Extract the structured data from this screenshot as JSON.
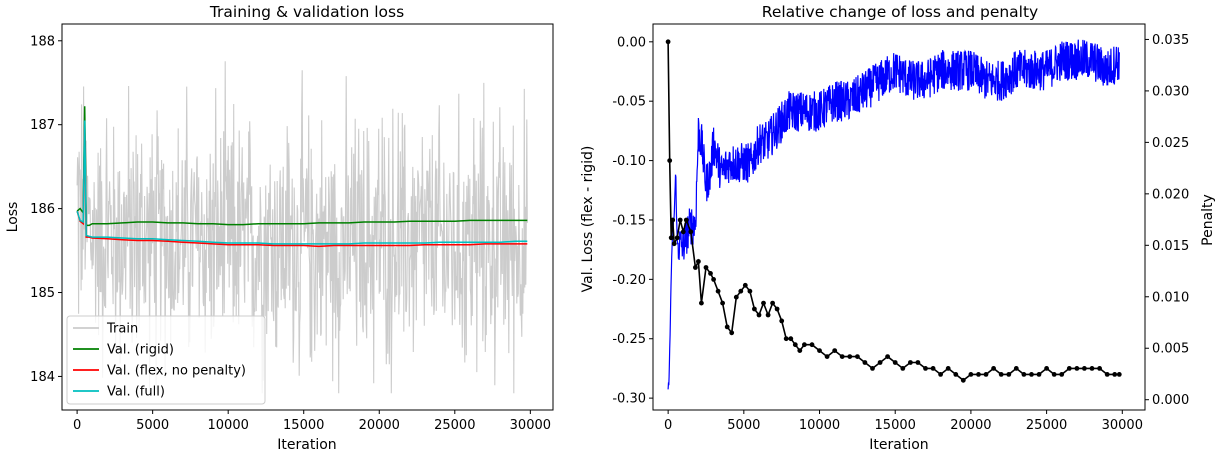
{
  "chart_data": [
    {
      "type": "line",
      "title": "Training & validation loss",
      "xlabel": "Iteration",
      "ylabel": "Loss",
      "xlim": [
        -1000,
        31500
      ],
      "ylim": [
        183.6,
        188.2
      ],
      "xticks": [
        0,
        5000,
        10000,
        15000,
        20000,
        25000,
        30000
      ],
      "yticks": [
        184,
        185,
        186,
        187,
        188
      ],
      "legend_position": "lower-left",
      "grid": false,
      "series": [
        {
          "name": "Train",
          "color": "#cccccc",
          "noise_band": true,
          "x": [
            0,
            500,
            1000,
            2000,
            5000,
            10000,
            15000,
            20000,
            25000,
            27000,
            29800
          ],
          "y": [
            186.0,
            185.9,
            185.7,
            185.7,
            185.65,
            185.6,
            185.6,
            185.6,
            185.6,
            185.6,
            185.6
          ],
          "approx_range": [
            183.8,
            187.9
          ]
        },
        {
          "name": "Val. (rigid)",
          "color": "#008000",
          "x": [
            0,
            200,
            400,
            500,
            550,
            600,
            800,
            1000,
            2000,
            3000,
            4000,
            5000,
            6000,
            7000,
            8000,
            9000,
            10000,
            11000,
            12000,
            13000,
            14000,
            15000,
            16000,
            17000,
            18000,
            19000,
            20000,
            21000,
            22000,
            23000,
            24000,
            25000,
            26000,
            27000,
            28000,
            29000,
            29800
          ],
          "y": [
            185.97,
            186.0,
            185.95,
            187.22,
            186.6,
            185.8,
            185.8,
            185.82,
            185.82,
            185.83,
            185.84,
            185.84,
            185.83,
            185.83,
            185.82,
            185.82,
            185.81,
            185.81,
            185.82,
            185.82,
            185.82,
            185.82,
            185.83,
            185.83,
            185.83,
            185.84,
            185.84,
            185.84,
            185.85,
            185.85,
            185.85,
            185.85,
            185.86,
            185.86,
            185.86,
            185.86,
            185.86
          ]
        },
        {
          "name": "Val. (flex, no penalty)",
          "color": "#ff0000",
          "x": [
            0,
            200,
            400,
            500,
            550,
            600,
            800,
            1000,
            2000,
            3000,
            4000,
            5000,
            6000,
            7000,
            8000,
            9000,
            10000,
            11000,
            12000,
            13000,
            14000,
            15000,
            16000,
            17000,
            18000,
            19000,
            20000,
            21000,
            22000,
            23000,
            24000,
            25000,
            26000,
            27000,
            28000,
            29000,
            29800
          ],
          "y": [
            185.97,
            185.85,
            185.82,
            187.0,
            186.4,
            185.66,
            185.66,
            185.65,
            185.64,
            185.63,
            185.62,
            185.62,
            185.61,
            185.6,
            185.59,
            185.58,
            185.57,
            185.57,
            185.57,
            185.56,
            185.56,
            185.56,
            185.55,
            185.56,
            185.56,
            185.56,
            185.56,
            185.56,
            185.56,
            185.57,
            185.57,
            185.57,
            185.57,
            185.58,
            185.58,
            185.58,
            185.58
          ]
        },
        {
          "name": "Val. (full)",
          "color": "#00bfbf",
          "x": [
            0,
            200,
            400,
            500,
            550,
            600,
            800,
            1000,
            2000,
            3000,
            4000,
            5000,
            6000,
            7000,
            8000,
            9000,
            10000,
            11000,
            12000,
            13000,
            14000,
            15000,
            16000,
            17000,
            18000,
            19000,
            20000,
            21000,
            22000,
            23000,
            24000,
            25000,
            26000,
            27000,
            28000,
            29000,
            29800
          ],
          "y": [
            185.97,
            185.86,
            185.84,
            187.05,
            186.45,
            185.68,
            185.67,
            185.66,
            185.66,
            185.65,
            185.64,
            185.64,
            185.63,
            185.62,
            185.61,
            185.6,
            185.59,
            185.59,
            185.59,
            185.58,
            185.58,
            185.58,
            185.58,
            185.58,
            185.58,
            185.59,
            185.59,
            185.59,
            185.59,
            185.59,
            185.6,
            185.6,
            185.6,
            185.6,
            185.6,
            185.61,
            185.61
          ]
        }
      ]
    },
    {
      "type": "line",
      "title": "Relative change of loss and penalty",
      "xlabel": "Iteration",
      "ylabel": "Val. Loss (flex - rigid)",
      "ylabel_right": "Penalty",
      "ylabel_right_color": "#0000ff",
      "xlim": [
        -1000,
        31500
      ],
      "ylim": [
        -0.31,
        0.015
      ],
      "ylim_right": [
        -0.001,
        0.0365
      ],
      "xticks": [
        0,
        5000,
        10000,
        15000,
        20000,
        25000,
        30000
      ],
      "yticks": [
        0.0,
        -0.05,
        -0.1,
        -0.15,
        -0.2,
        -0.25,
        -0.3
      ],
      "yticks_right": [
        0.0,
        0.005,
        0.01,
        0.015,
        0.02,
        0.025,
        0.03,
        0.035
      ],
      "grid": false,
      "series": [
        {
          "name": "Penalty",
          "axis": "right",
          "color": "#0000ff",
          "noise_band": true,
          "x": [
            0,
            100,
            200,
            300,
            400,
            500,
            600,
            700,
            800,
            1000,
            1200,
            1500,
            1800,
            2000,
            2200,
            2500,
            2800,
            3000,
            3500,
            4000,
            4500,
            5000,
            5500,
            6000,
            6500,
            7000,
            7500,
            8000,
            9000,
            10000,
            11000,
            12000,
            13000,
            14000,
            15000,
            16000,
            17000,
            18000,
            19000,
            20000,
            21000,
            22000,
            23000,
            24000,
            25000,
            26000,
            27000,
            28000,
            29000,
            29800
          ],
          "y": [
            0.0005,
            0.004,
            0.012,
            0.016,
            0.018,
            0.022,
            0.015,
            0.015,
            0.015,
            0.015,
            0.016,
            0.017,
            0.017,
            0.026,
            0.025,
            0.021,
            0.022,
            0.025,
            0.022,
            0.023,
            0.023,
            0.023,
            0.023,
            0.025,
            0.025,
            0.026,
            0.027,
            0.028,
            0.028,
            0.028,
            0.029,
            0.029,
            0.03,
            0.031,
            0.032,
            0.031,
            0.031,
            0.032,
            0.032,
            0.032,
            0.031,
            0.031,
            0.032,
            0.032,
            0.032,
            0.033,
            0.033,
            0.033,
            0.032,
            0.033
          ],
          "approx_spread": 0.002
        },
        {
          "name": "Val. Loss (flex - rigid)",
          "axis": "left",
          "color": "#000000",
          "markers": true,
          "x": [
            0,
            100,
            200,
            300,
            400,
            600,
            800,
            1000,
            1200,
            1500,
            1800,
            2000,
            2200,
            2500,
            2800,
            3000,
            3300,
            3600,
            3900,
            4200,
            4500,
            4800,
            5100,
            5400,
            5700,
            6000,
            6300,
            6600,
            6900,
            7200,
            7500,
            7800,
            8100,
            8400,
            8700,
            9000,
            9500,
            10000,
            10500,
            11000,
            11500,
            12000,
            12500,
            13000,
            13500,
            14000,
            14500,
            15000,
            15500,
            16000,
            16500,
            17000,
            17500,
            18000,
            18500,
            19000,
            19500,
            20000,
            20500,
            21000,
            21500,
            22000,
            22500,
            23000,
            23500,
            24000,
            24500,
            25000,
            25500,
            26000,
            26500,
            27000,
            27500,
            28000,
            28500,
            29000,
            29500,
            29800
          ],
          "y": [
            0.0,
            -0.1,
            -0.165,
            -0.15,
            -0.17,
            -0.165,
            -0.15,
            -0.16,
            -0.15,
            -0.16,
            -0.19,
            -0.185,
            -0.22,
            -0.19,
            -0.195,
            -0.2,
            -0.21,
            -0.22,
            -0.24,
            -0.245,
            -0.215,
            -0.21,
            -0.205,
            -0.21,
            -0.225,
            -0.23,
            -0.22,
            -0.23,
            -0.22,
            -0.225,
            -0.235,
            -0.25,
            -0.25,
            -0.255,
            -0.26,
            -0.255,
            -0.255,
            -0.26,
            -0.265,
            -0.26,
            -0.265,
            -0.265,
            -0.265,
            -0.27,
            -0.275,
            -0.27,
            -0.265,
            -0.27,
            -0.275,
            -0.27,
            -0.27,
            -0.275,
            -0.275,
            -0.28,
            -0.275,
            -0.28,
            -0.285,
            -0.28,
            -0.28,
            -0.28,
            -0.275,
            -0.28,
            -0.28,
            -0.275,
            -0.28,
            -0.28,
            -0.28,
            -0.275,
            -0.28,
            -0.28,
            -0.275,
            -0.275,
            -0.275,
            -0.275,
            -0.275,
            -0.28,
            -0.28,
            -0.28
          ]
        }
      ]
    }
  ]
}
